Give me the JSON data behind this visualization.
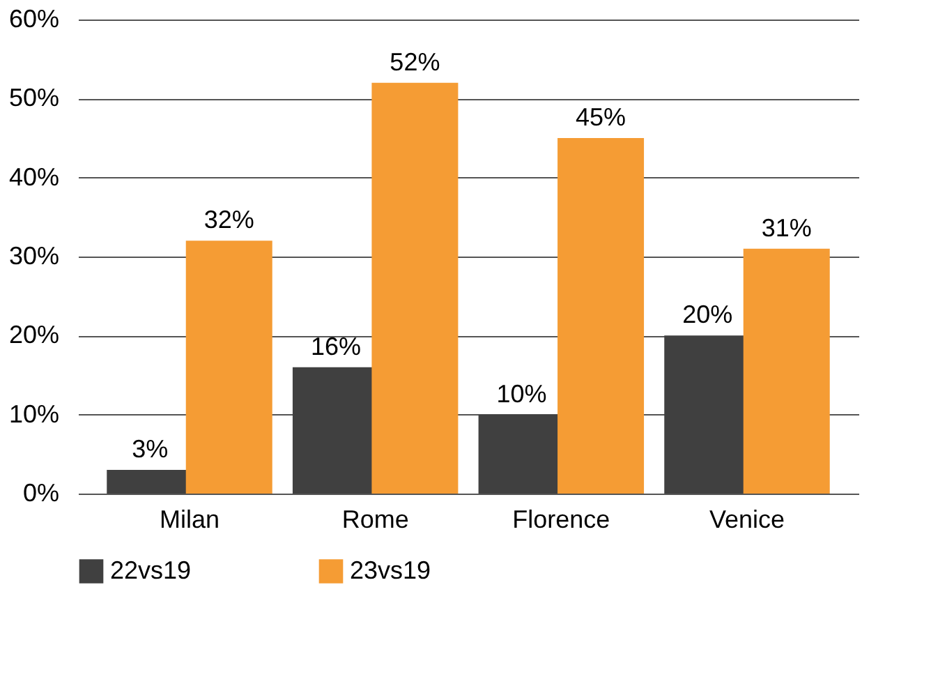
{
  "chart_data": {
    "type": "bar",
    "categories": [
      "Milan",
      "Rome",
      "Florence",
      "Venice"
    ],
    "series": [
      {
        "name": "22vs19",
        "color": "#404040",
        "values": [
          3,
          16,
          10,
          20
        ],
        "value_labels": [
          "3%",
          "16%",
          "10%",
          "20%"
        ]
      },
      {
        "name": "23vs19",
        "color": "#f59c34",
        "values": [
          32,
          52,
          45,
          31
        ],
        "value_labels": [
          "32%",
          "52%",
          "45%",
          "31%"
        ]
      }
    ],
    "ylim": [
      0,
      60
    ],
    "yticks": [
      {
        "value": 0,
        "label": "0%"
      },
      {
        "value": 10,
        "label": "10%"
      },
      {
        "value": 20,
        "label": "20%"
      },
      {
        "value": 30,
        "label": "30%"
      },
      {
        "value": 40,
        "label": "40%"
      },
      {
        "value": 50,
        "label": "50%"
      },
      {
        "value": 60,
        "label": "60%"
      }
    ],
    "grid": "y",
    "legend": "bottom"
  }
}
